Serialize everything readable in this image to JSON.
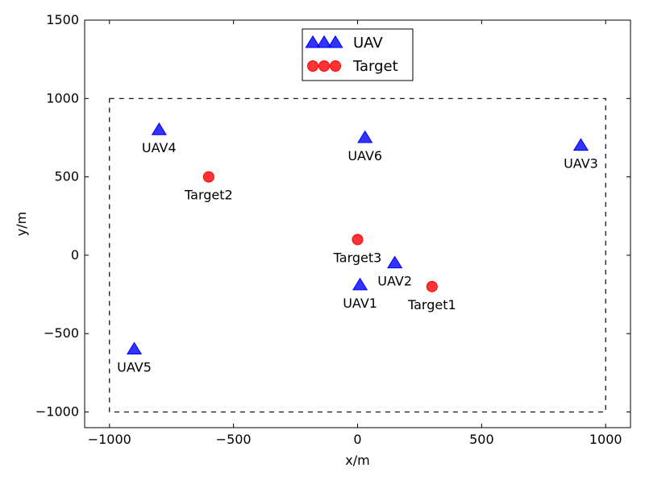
{
  "chart_data": {
    "type": "scatter",
    "xlabel": "x/m",
    "ylabel": "y/m",
    "xlim": [
      -1100,
      1100
    ],
    "ylim": [
      -1100,
      1500
    ],
    "xticks": [
      -1000,
      -500,
      0,
      500,
      1000
    ],
    "yticks": [
      -1000,
      -500,
      0,
      500,
      1000,
      1500
    ],
    "x_tick_labels": [
      "−1000",
      "−500",
      "0",
      "500",
      "1000"
    ],
    "y_tick_labels": [
      "−1000",
      "−500",
      "0",
      "500",
      "1000",
      "1500"
    ],
    "grid": false,
    "legend_position": "top-center",
    "boundary": {
      "x": [
        -1000,
        1000
      ],
      "y": [
        -1000,
        1000
      ],
      "style": "dashed",
      "color": "#000000"
    },
    "series": [
      {
        "name": "UAV",
        "marker": "triangle",
        "color": "#0000ff",
        "points": [
          {
            "label": "UAV1",
            "x": 10,
            "y": -190
          },
          {
            "label": "UAV2",
            "x": 150,
            "y": -50
          },
          {
            "label": "UAV3",
            "x": 900,
            "y": 700
          },
          {
            "label": "UAV4",
            "x": -800,
            "y": 800
          },
          {
            "label": "UAV5",
            "x": -900,
            "y": -600
          },
          {
            "label": "UAV6",
            "x": 30,
            "y": 750
          }
        ]
      },
      {
        "name": "Target",
        "marker": "circle",
        "color": "#ff0000",
        "points": [
          {
            "label": "Target1",
            "x": 300,
            "y": -200
          },
          {
            "label": "Target2",
            "x": -600,
            "y": 500
          },
          {
            "label": "Target3",
            "x": 0,
            "y": 100
          }
        ]
      }
    ]
  }
}
